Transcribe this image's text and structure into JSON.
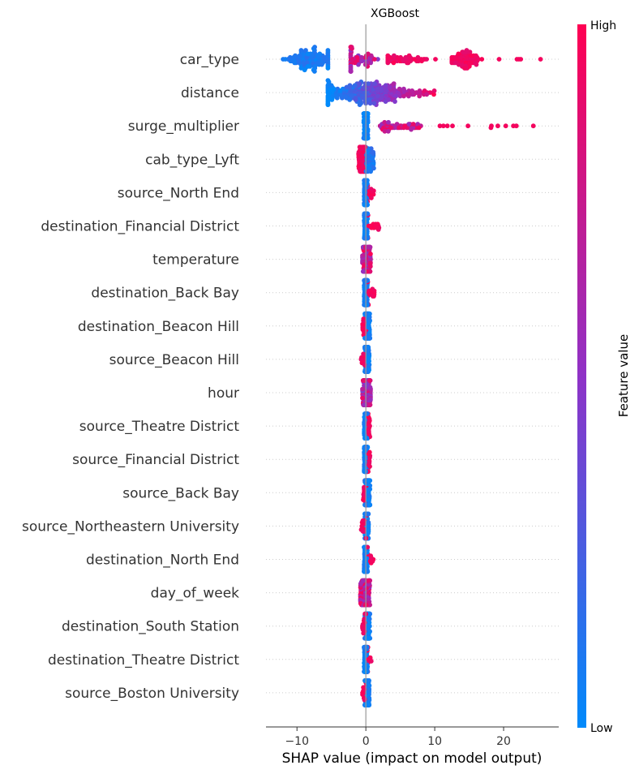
{
  "chart_data": {
    "type": "scatter",
    "subtype": "shap-beeswarm",
    "title": "XGBoost",
    "xlabel": "SHAP value (impact on model output)",
    "ylabel": "",
    "xlim": [
      -14.5,
      28
    ],
    "xticks": [
      -10,
      0,
      10,
      20
    ],
    "grid": false,
    "zero_line": true,
    "colorbar": {
      "label": "Feature value",
      "high_label": "High",
      "low_label": "Low",
      "low_color": "#008afb",
      "mid_color": "#8f32c7",
      "high_color": "#ff0052"
    },
    "features": [
      {
        "name": "car_type",
        "min": -12.5,
        "max": 26.0,
        "pattern": "car_type"
      },
      {
        "name": "distance",
        "min": -5.5,
        "max": 14.5,
        "pattern": "distance"
      },
      {
        "name": "surge_multiplier",
        "min": -0.5,
        "max": 26.5,
        "pattern": "surge"
      },
      {
        "name": "cab_type_Lyft",
        "min": -1.2,
        "max": 1.2,
        "pattern": "cab"
      },
      {
        "name": "source_North End",
        "min": -0.3,
        "max": 1.2,
        "pattern": "narrow_high_right"
      },
      {
        "name": "destination_Financial District",
        "min": -0.3,
        "max": 2.2,
        "pattern": "narrow_high_right"
      },
      {
        "name": "temperature",
        "min": -0.5,
        "max": 0.7,
        "pattern": "narrow_mixed"
      },
      {
        "name": "destination_Back Bay",
        "min": -0.4,
        "max": 1.4,
        "pattern": "narrow_high_right"
      },
      {
        "name": "destination_Beacon Hill",
        "min": -0.5,
        "max": 0.6,
        "pattern": "narrow_high_left"
      },
      {
        "name": "source_Beacon Hill",
        "min": -0.7,
        "max": 0.5,
        "pattern": "narrow_high_left"
      },
      {
        "name": "hour",
        "min": -0.5,
        "max": 0.7,
        "pattern": "narrow_mixed"
      },
      {
        "name": "source_Theatre District",
        "min": -0.2,
        "max": 0.6,
        "pattern": "narrow_high_right"
      },
      {
        "name": "source_Financial District",
        "min": -0.2,
        "max": 0.6,
        "pattern": "narrow_high_right"
      },
      {
        "name": "source_Back Bay",
        "min": -0.4,
        "max": 0.6,
        "pattern": "narrow_high_left"
      },
      {
        "name": "source_Northeastern University",
        "min": -0.7,
        "max": 0.4,
        "pattern": "narrow_high_left"
      },
      {
        "name": "destination_North End",
        "min": -0.2,
        "max": 1.1,
        "pattern": "narrow_high_right"
      },
      {
        "name": "day_of_week",
        "min": -0.8,
        "max": 0.6,
        "pattern": "narrow_mixed"
      },
      {
        "name": "destination_South Station",
        "min": -0.5,
        "max": 0.6,
        "pattern": "narrow_high_left"
      },
      {
        "name": "destination_Theatre District",
        "min": -0.4,
        "max": 0.9,
        "pattern": "narrow_high_right"
      },
      {
        "name": "source_Boston University",
        "min": -0.5,
        "max": 0.5,
        "pattern": "narrow_high_left"
      }
    ]
  }
}
